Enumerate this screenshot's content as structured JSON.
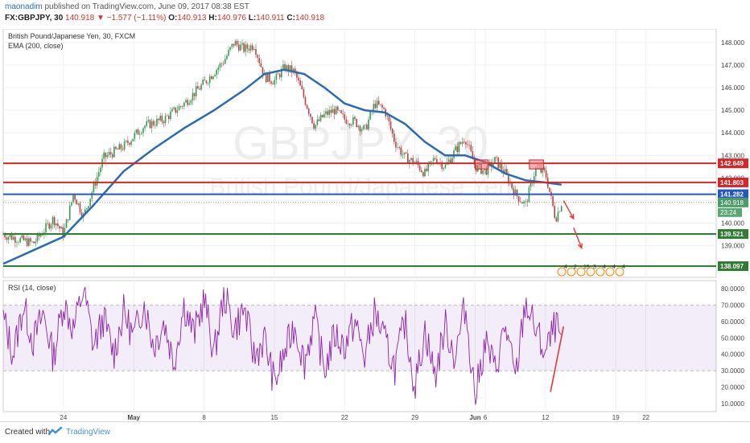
{
  "header": {
    "username": "maonadim",
    "published_text": "published on TradingView.com, June 09, 2017 08:38 EST",
    "symbol": "FX:GBPJPY, 30",
    "last_price": "140.918",
    "change": "▼ −1.577 (−1.11%)",
    "o_label": "O:",
    "o_value": "140.913",
    "h_label": "H:",
    "h_value": "140.976",
    "l_label": "L:",
    "l_value": "140.911",
    "c_label": "C:",
    "c_value": "140.918"
  },
  "chart_data": [
    {
      "type": "candlestick",
      "title": "British Pound/Japanese Yen, 30, FXCM",
      "indicator": "EMA (200, close)",
      "watermark_symbol": "GBPJPY, 30",
      "watermark_name": "British Pound/Japanese Yen",
      "ylim": [
        137.6,
        148.6
      ],
      "y_ticks": [
        "138.000",
        "139.000",
        "140.000",
        "141.000",
        "142.000",
        "143.000",
        "144.000",
        "145.000",
        "146.000",
        "147.000",
        "148.000"
      ],
      "x_ticks": [
        "24",
        "May",
        "8",
        "15",
        "22",
        "29",
        "Jun",
        "6",
        "12",
        "19",
        "22"
      ],
      "x_tick_days": [
        24,
        31,
        38,
        45,
        52,
        59,
        65,
        66,
        72,
        79,
        82
      ],
      "price_path": [
        [
          18,
          139.5
        ],
        [
          21,
          139.1
        ],
        [
          23,
          140.2
        ],
        [
          24,
          139.5
        ],
        [
          25,
          141.3
        ],
        [
          26,
          140.3
        ],
        [
          27,
          141.6
        ],
        [
          28,
          142.9
        ],
        [
          30,
          143.4
        ],
        [
          32,
          144.3
        ],
        [
          34,
          144.6
        ],
        [
          36,
          145.3
        ],
        [
          38,
          146.2
        ],
        [
          40,
          147.2
        ],
        [
          41,
          148.0
        ],
        [
          42,
          147.7
        ],
        [
          43,
          147.9
        ],
        [
          44,
          146.5
        ],
        [
          45,
          146.3
        ],
        [
          46,
          146.9
        ],
        [
          47,
          146.7
        ],
        [
          48,
          145.5
        ],
        [
          49,
          144.3
        ],
        [
          50,
          144.8
        ],
        [
          51,
          145.0
        ],
        [
          52,
          144.6
        ],
        [
          53,
          144.5
        ],
        [
          54,
          144.1
        ],
        [
          55,
          145.3
        ],
        [
          56,
          145.0
        ],
        [
          57,
          143.6
        ],
        [
          58,
          142.9
        ],
        [
          59,
          142.7
        ],
        [
          60,
          142.2
        ],
        [
          61,
          142.9
        ],
        [
          62,
          142.5
        ],
        [
          63,
          143.2
        ],
        [
          64,
          143.8
        ],
        [
          65,
          142.5
        ],
        [
          66,
          142.3
        ],
        [
          67,
          142.8
        ],
        [
          68,
          142.2
        ],
        [
          69,
          141.3
        ],
        [
          70,
          140.8
        ],
        [
          71,
          142.4
        ],
        [
          72,
          142.2
        ],
        [
          73,
          140.2
        ],
        [
          73.6,
          140.9
        ]
      ],
      "ema_200": [
        [
          18,
          138.2
        ],
        [
          21,
          138.8
        ],
        [
          24,
          139.4
        ],
        [
          27,
          140.8
        ],
        [
          30,
          142.3
        ],
        [
          33,
          143.3
        ],
        [
          36,
          144.2
        ],
        [
          39,
          145.0
        ],
        [
          42,
          145.9
        ],
        [
          44,
          146.6
        ],
        [
          46,
          146.8
        ],
        [
          48,
          146.6
        ],
        [
          50,
          146.0
        ],
        [
          52,
          145.3
        ],
        [
          54,
          145.0
        ],
        [
          56,
          144.9
        ],
        [
          58,
          144.4
        ],
        [
          60,
          143.6
        ],
        [
          62,
          143.0
        ],
        [
          64,
          143.0
        ],
        [
          66,
          142.7
        ],
        [
          68,
          142.2
        ],
        [
          70,
          141.9
        ],
        [
          72,
          141.8
        ],
        [
          73.6,
          141.7
        ]
      ],
      "horizontal_levels": [
        {
          "price": 142.649,
          "label": "142.649",
          "color": "#d62728"
        },
        {
          "price": 141.803,
          "label": "141.803",
          "color": "#d62728"
        },
        {
          "price": 141.282,
          "label": "141.282",
          "color": "#2457c5"
        },
        {
          "price": 139.521,
          "label": "139.521",
          "color": "#2e7d32"
        },
        {
          "price": 138.097,
          "label": "138.097",
          "color": "#2e7d32"
        }
      ],
      "current_price": {
        "price": 140.918,
        "label": "140.918",
        "countdown": "23:24"
      },
      "resistance_boxes": [
        {
          "from": 65,
          "to": 66.3,
          "price_low": 142.4,
          "price_high": 142.8
        },
        {
          "from": 70.4,
          "to": 71.8,
          "price_low": 142.4,
          "price_high": 142.8
        }
      ],
      "projection_arrows": [
        [
          73.8,
          141.0,
          74.8,
          140.2
        ],
        [
          74.8,
          139.8,
          75.6,
          138.9
        ]
      ],
      "event_markers": [
        "4",
        "2",
        "15",
        "3",
        "4",
        "4",
        "4"
      ]
    },
    {
      "type": "line",
      "title": "RSI (14, close)",
      "ylim": [
        5,
        85
      ],
      "y_ticks": [
        "10.0000",
        "20.0000",
        "30.0000",
        "40.0000",
        "50.0000",
        "60.0000",
        "70.0000",
        "80.0000"
      ],
      "band": [
        30,
        70
      ],
      "path": [
        [
          18,
          62
        ],
        [
          19,
          40
        ],
        [
          20,
          70
        ],
        [
          21,
          48
        ],
        [
          22,
          65
        ],
        [
          23,
          38
        ],
        [
          24,
          72
        ],
        [
          25,
          55
        ],
        [
          26,
          80
        ],
        [
          27,
          45
        ],
        [
          28,
          62
        ],
        [
          29,
          40
        ],
        [
          30,
          66
        ],
        [
          31,
          50
        ],
        [
          32,
          72
        ],
        [
          33,
          45
        ],
        [
          34,
          60
        ],
        [
          35,
          35
        ],
        [
          36,
          70
        ],
        [
          37,
          52
        ],
        [
          38,
          74
        ],
        [
          39,
          40
        ],
        [
          40,
          77
        ],
        [
          41,
          55
        ],
        [
          42,
          68
        ],
        [
          43,
          38
        ],
        [
          44,
          50
        ],
        [
          45,
          22
        ],
        [
          46,
          40
        ],
        [
          47,
          58
        ],
        [
          48,
          35
        ],
        [
          49,
          62
        ],
        [
          50,
          30
        ],
        [
          51,
          52
        ],
        [
          52,
          45
        ],
        [
          53,
          60
        ],
        [
          54,
          38
        ],
        [
          55,
          66
        ],
        [
          56,
          48
        ],
        [
          57,
          32
        ],
        [
          58,
          60
        ],
        [
          59,
          20
        ],
        [
          60,
          55
        ],
        [
          61,
          26
        ],
        [
          62,
          58
        ],
        [
          63,
          38
        ],
        [
          64,
          70
        ],
        [
          65,
          14
        ],
        [
          66,
          48
        ],
        [
          67,
          30
        ],
        [
          68,
          58
        ],
        [
          69,
          24
        ],
        [
          70,
          72
        ],
        [
          71,
          55
        ],
        [
          72,
          40
        ],
        [
          73,
          58
        ],
        [
          73.6,
          48
        ]
      ],
      "trendline": [
        [
          72.5,
          17
        ],
        [
          73.8,
          57
        ]
      ]
    }
  ],
  "footer": {
    "created_with": "Created with",
    "brand": "TradingView"
  }
}
